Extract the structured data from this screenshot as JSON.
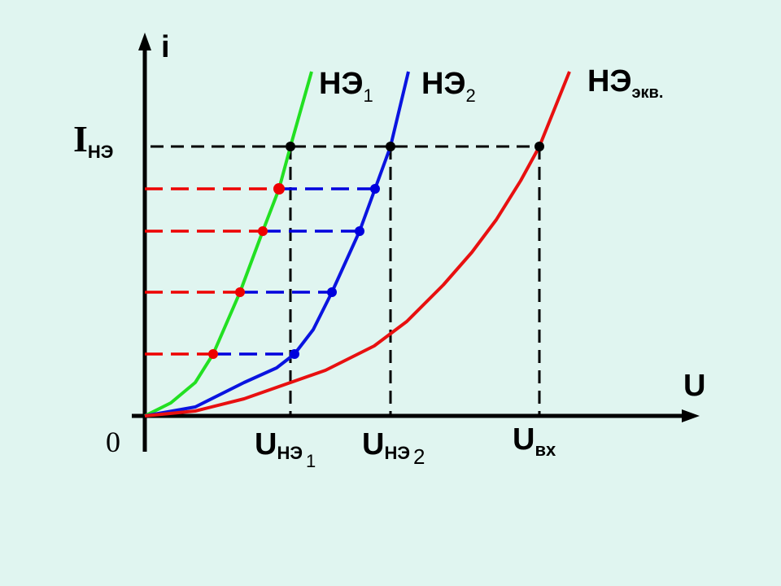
{
  "axes": {
    "y": "i",
    "x": "U",
    "origin": "0"
  },
  "curves": [
    {
      "main": "НЭ",
      "sub": "1"
    },
    {
      "main": "НЭ",
      "sub": "2"
    },
    {
      "main": "НЭ",
      "sub": "экв."
    }
  ],
  "current_label": {
    "main": "I",
    "sub": "НЭ"
  },
  "voltage_labels": [
    {
      "main": "U",
      "sub": "НЭ",
      "index": "1"
    },
    {
      "main": "U",
      "sub": "НЭ",
      "index": "2"
    },
    {
      "main": "U",
      "sub": "вх"
    }
  ]
}
